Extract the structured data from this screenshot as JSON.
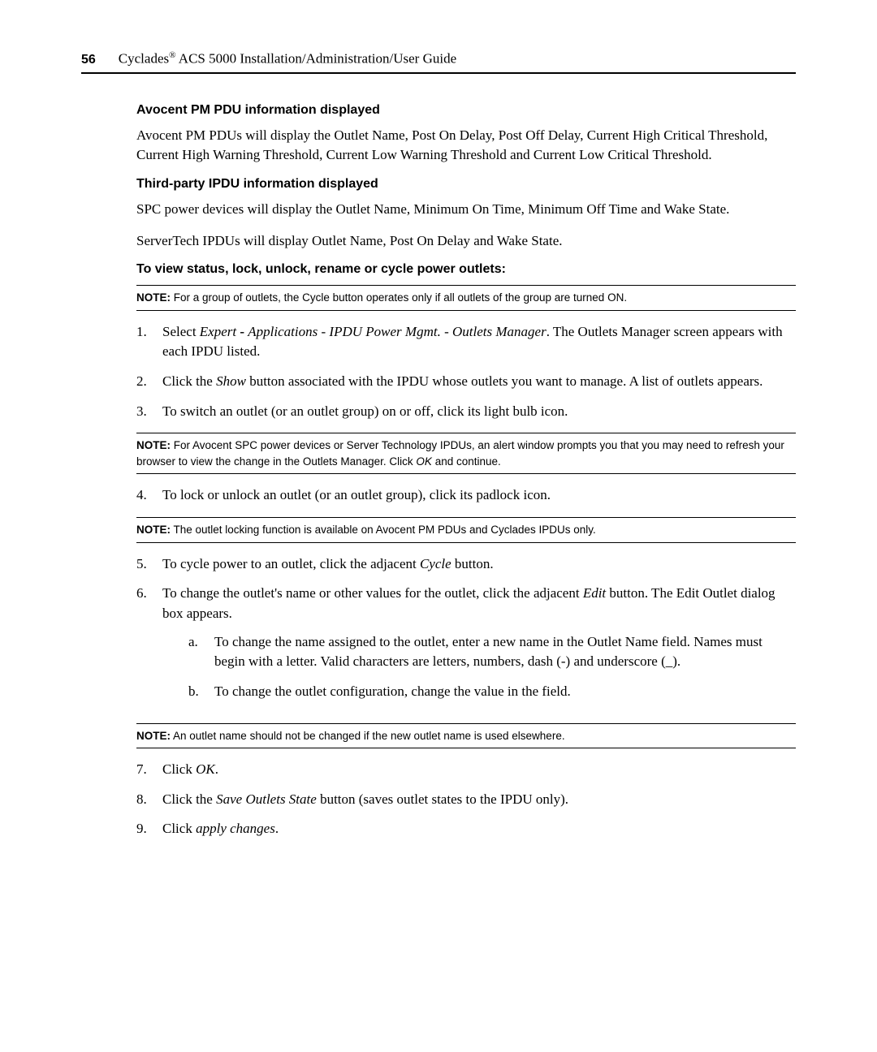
{
  "header": {
    "page_number": "56",
    "title_prefix": "Cyclades",
    "title_reg": "®",
    "title_rest": " ACS 5000 Installation/Administration/User Guide"
  },
  "sec1": {
    "heading": "Avocent PM PDU information displayed",
    "body": "Avocent PM PDUs will display the Outlet Name, Post On Delay, Post Off Delay, Current High Critical Threshold, Current High Warning Threshold, Current Low Warning Threshold and Current Low Critical Threshold."
  },
  "sec2": {
    "heading": "Third-party IPDU information displayed",
    "body1": "SPC power devices will display the Outlet Name, Minimum On Time, Minimum Off Time and Wake State.",
    "body2": "ServerTech IPDUs will display Outlet Name, Post On Delay and Wake State."
  },
  "sec3": {
    "heading": "To view status, lock, unlock, rename or cycle power outlets:"
  },
  "notes": {
    "label": "NOTE:",
    "n1": " For a group of outlets, the Cycle button operates only if all outlets of the group are turned ON.",
    "n2a": " For Avocent SPC power devices or Server Technology IPDUs, an alert window prompts you that you may need to refresh your browser to view the change in the Outlets Manager. Click ",
    "n2b": "OK",
    "n2c": " and continue.",
    "n3": " The outlet locking function is available on Avocent PM PDUs and Cyclades IPDUs only.",
    "n4": " An outlet name should not be changed if the new outlet name is used elsewhere."
  },
  "steps": {
    "s1": {
      "n": "1.",
      "a": "Select ",
      "b": "Expert",
      "c": " - ",
      "d": "Applications",
      "e": " - ",
      "f": "IPDU Power Mgmt.",
      "g": " - ",
      "h": "Outlets Manager",
      "i": ". The Outlets Manager screen appears with each IPDU listed."
    },
    "s2": {
      "n": "2.",
      "a": "Click the ",
      "b": "Show",
      "c": " button associated with the IPDU whose outlets you want to manage. A list of outlets appears."
    },
    "s3": {
      "n": "3.",
      "a": "To switch an outlet (or an outlet group) on or off, click its light bulb icon."
    },
    "s4": {
      "n": "4.",
      "a": "To lock or unlock an outlet (or an outlet group), click its padlock icon."
    },
    "s5": {
      "n": "5.",
      "a": "To cycle power to an outlet, click the adjacent ",
      "b": "Cycle",
      "c": " button."
    },
    "s6": {
      "n": "6.",
      "a": "To change the outlet's name or other values for the outlet, click the adjacent ",
      "b": "Edit",
      "c": " button. The Edit Outlet dialog box appears.",
      "sa": {
        "n": "a.",
        "t": "To change the name assigned to the outlet, enter a new name in the Outlet Name field. Names must begin with a letter. Valid characters are letters, numbers, dash (-) and underscore (_)."
      },
      "sb": {
        "n": "b.",
        "t": "To change the outlet configuration, change the value in the field."
      }
    },
    "s7": {
      "n": "7.",
      "a": "Click ",
      "b": "OK",
      "c": "."
    },
    "s8": {
      "n": "8.",
      "a": "Click the ",
      "b": "Save Outlets State",
      "c": " button (saves outlet states to the IPDU only)."
    },
    "s9": {
      "n": "9.",
      "a": "Click ",
      "b": "apply changes",
      "c": "."
    }
  }
}
